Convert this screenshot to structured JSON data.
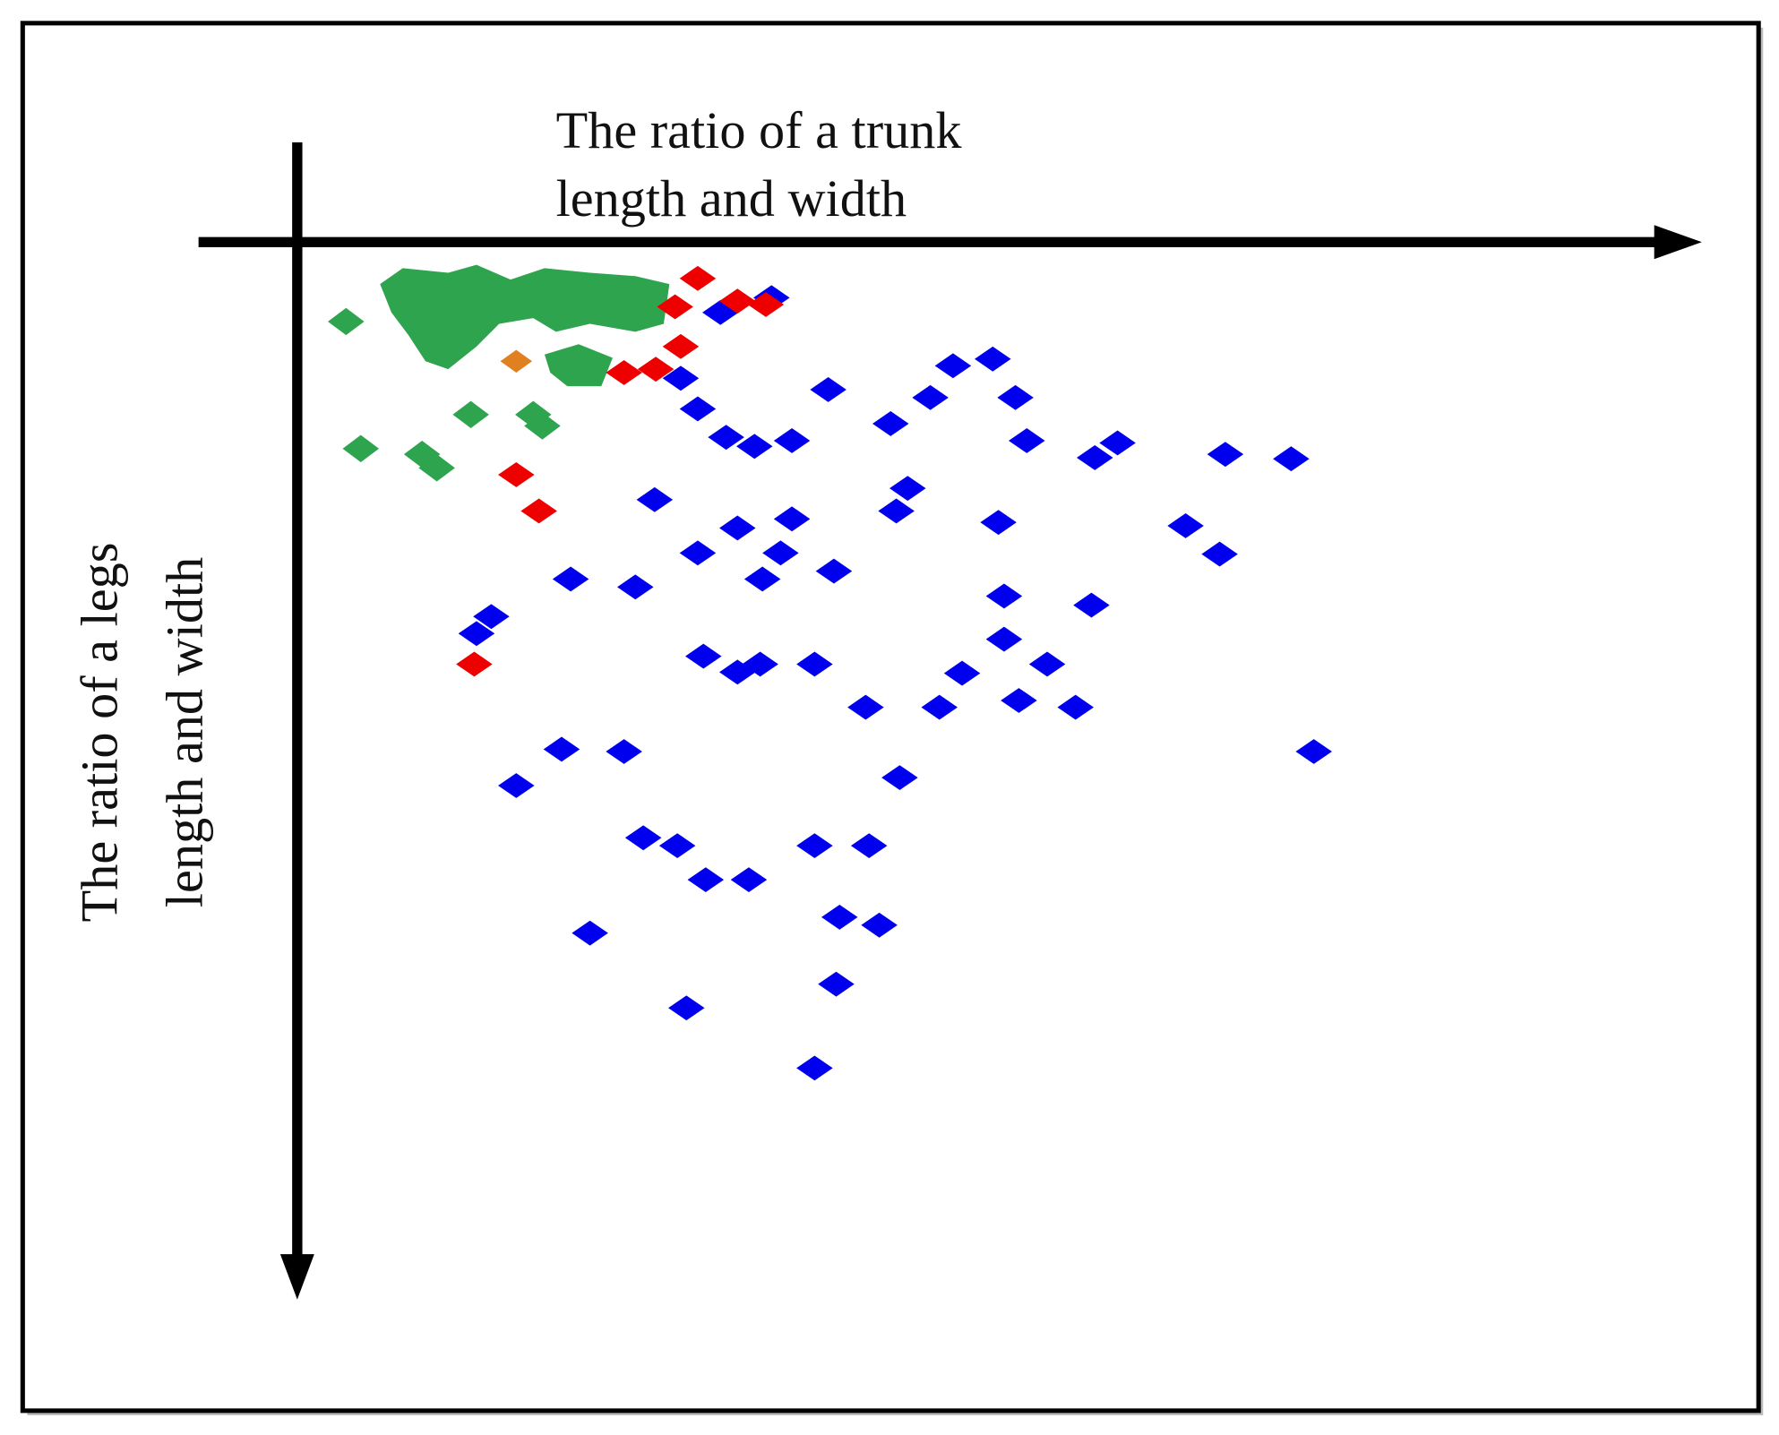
{
  "x_axis_label": [
    "The ratio of a trunk",
    "length and width"
  ],
  "y_axis_label": [
    "The ratio of a legs",
    "length and width"
  ]
}
